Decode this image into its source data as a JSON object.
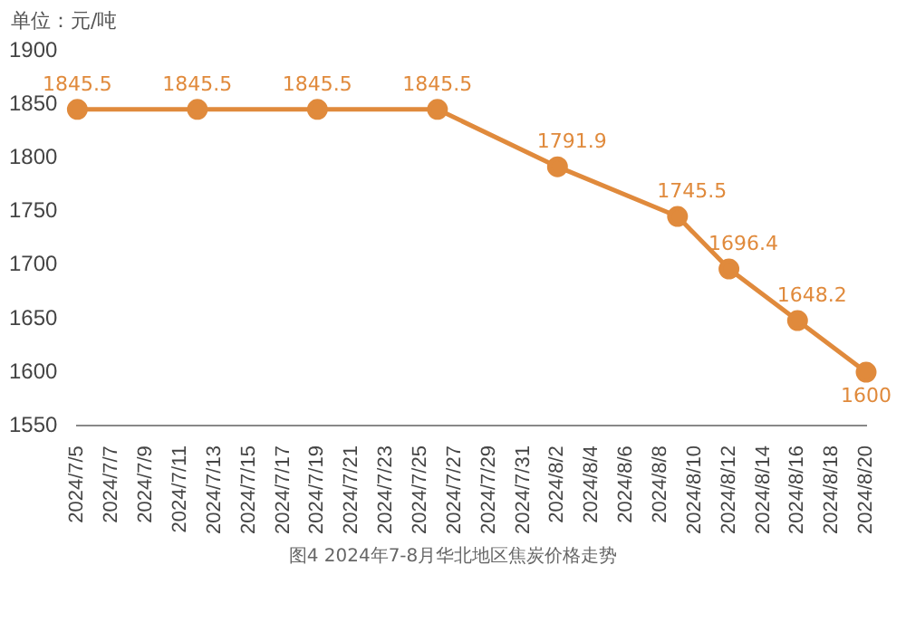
{
  "chart_data": {
    "type": "line",
    "ylabel": "单位：元/吨",
    "x": [
      "2024-07-05",
      "2024-07-12",
      "2024-07-19",
      "2024-07-26",
      "2024-08-02",
      "2024-08-09",
      "2024-08-12",
      "2024-08-16",
      "2024-08-20"
    ],
    "series": [
      {
        "color": "#e08a3c",
        "values": [
          1845.5,
          1845.5,
          1845.5,
          1845.5,
          1791.9,
          1745.5,
          1696.4,
          1648.2,
          1600
        ]
      }
    ],
    "xlim": [
      "2024-07-05",
      "2024-08-20"
    ],
    "xticks": [
      {
        "value": "2024-07-05",
        "label": "2024/7/5"
      },
      {
        "value": "2024-07-07",
        "label": "2024/7/7"
      },
      {
        "value": "2024-07-09",
        "label": "2024/7/9"
      },
      {
        "value": "2024-07-11",
        "label": "2024/7/11"
      },
      {
        "value": "2024-07-13",
        "label": "2024/7/13"
      },
      {
        "value": "2024-07-15",
        "label": "2024/7/15"
      },
      {
        "value": "2024-07-17",
        "label": "2024/7/17"
      },
      {
        "value": "2024-07-19",
        "label": "2024/7/19"
      },
      {
        "value": "2024-07-21",
        "label": "2024/7/21"
      },
      {
        "value": "2024-07-23",
        "label": "2024/7/23"
      },
      {
        "value": "2024-07-25",
        "label": "2024/7/25"
      },
      {
        "value": "2024-07-27",
        "label": "2024/7/27"
      },
      {
        "value": "2024-07-29",
        "label": "2024/7/29"
      },
      {
        "value": "2024-07-31",
        "label": "2024/7/31"
      },
      {
        "value": "2024-08-02",
        "label": "2024/8/2"
      },
      {
        "value": "2024-08-04",
        "label": "2024/8/4"
      },
      {
        "value": "2024-08-06",
        "label": "2024/8/6"
      },
      {
        "value": "2024-08-08",
        "label": "2024/8/8"
      },
      {
        "value": "2024-08-10",
        "label": "2024/8/10"
      },
      {
        "value": "2024-08-12",
        "label": "2024/8/12"
      },
      {
        "value": "2024-08-14",
        "label": "2024/8/14"
      },
      {
        "value": "2024-08-16",
        "label": "2024/8/16"
      },
      {
        "value": "2024-08-18",
        "label": "2024/8/18"
      },
      {
        "value": "2024-08-20",
        "label": "2024/8/20"
      }
    ],
    "ylim": [
      1550,
      1900
    ],
    "yticks": [
      1550,
      1600,
      1650,
      1700,
      1750,
      1800,
      1850,
      1900
    ],
    "grid": false,
    "legend": false,
    "marker": "circle",
    "line_style": "solid",
    "data_labels": true,
    "annotations": [
      "图4  2024年7-8月华北地区焦炭价格走势"
    ]
  }
}
